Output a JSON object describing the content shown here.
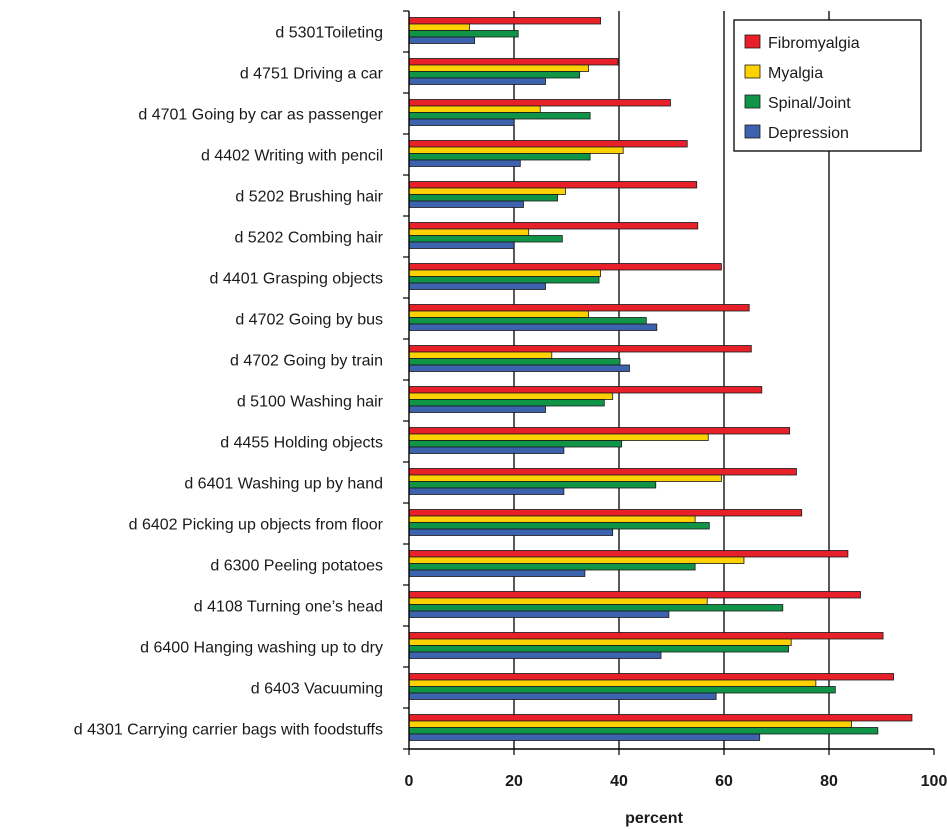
{
  "chart_data": {
    "type": "bar",
    "orientation": "horizontal",
    "title": "",
    "xlabel": "percent",
    "ylabel": "",
    "xlim": [
      0,
      100
    ],
    "xticks": [
      "0",
      "20",
      "40",
      "60",
      "80",
      "100"
    ],
    "grid": "vertical lines at 20, 40, 60, 80",
    "legend_position": "top-right",
    "categories": [
      "d 5301Toileting",
      "d 4751 Driving a car",
      "d 4701 Going by car as passenger",
      "d 4402 Writing with pencil",
      "d 5202 Brushing hair",
      "d 5202 Combing hair",
      "d 4401 Grasping objects",
      "d 4702 Going by bus",
      "d 4702 Going by train",
      "d 5100 Washing hair",
      "d 4455 Holding objects",
      "d 6401 Washing up by hand",
      "d 6402 Picking up objects from floor",
      "d 6300 Peeling potatoes",
      "d 4108 Turning one’s head",
      "d 6400 Hanging washing up to dry",
      "d 6403 Vacuuming",
      "d 4301 Carrying carrier bags with foodstuffs"
    ],
    "series": [
      {
        "name": "Fibromyalgia",
        "color": "#e8202a",
        "values": [
          36.5,
          39.8,
          49.8,
          53,
          54.8,
          55,
          59.5,
          64.8,
          65.2,
          67.2,
          72.5,
          73.8,
          74.8,
          83.6,
          86,
          90.3,
          92.3,
          95.8
        ]
      },
      {
        "name": "Myalgia",
        "color": "#fed100",
        "values": [
          11.5,
          34.2,
          25,
          40.8,
          29.8,
          22.8,
          36.5,
          34.2,
          27.2,
          38.8,
          57,
          59.5,
          54.5,
          63.8,
          56.8,
          72.8,
          77.5,
          84.3
        ]
      },
      {
        "name": "Spinal/Joint",
        "color": "#0f9448",
        "values": [
          20.8,
          32.5,
          34.5,
          34.5,
          28.3,
          29.2,
          36.2,
          45.2,
          40.2,
          37.2,
          40.5,
          47,
          57.2,
          54.5,
          71.2,
          72.3,
          81.2,
          89.3
        ]
      },
      {
        "name": "Depression",
        "color": "#3d62ae",
        "values": [
          12.5,
          26,
          20,
          21.2,
          21.8,
          20,
          26,
          47.2,
          42,
          26,
          29.5,
          29.5,
          38.8,
          33.5,
          49.5,
          48,
          58.5,
          66.8
        ]
      }
    ]
  }
}
